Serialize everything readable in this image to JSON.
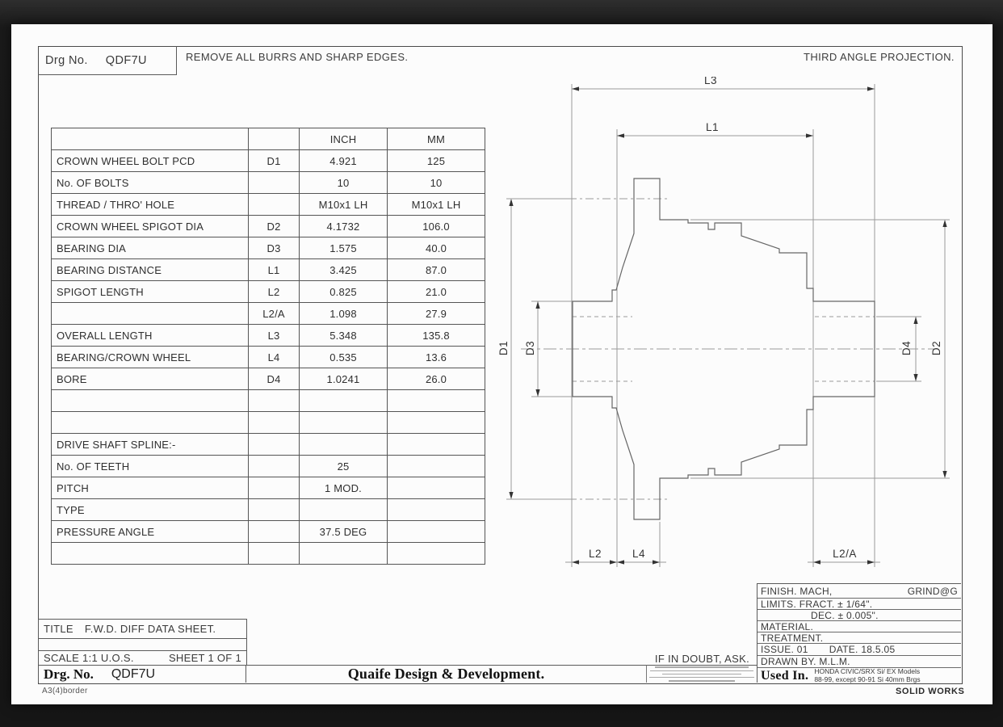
{
  "sheet": {
    "drg_no_label": "Drg No.",
    "drg_no_value": "QDF7U",
    "top_note": "REMOVE ALL BURRS AND SHARP EDGES.",
    "projection_note": "THIRD ANGLE PROJECTION.",
    "border_note": "A3(4)border",
    "cad_note": "SOLID WORKS"
  },
  "data_table": {
    "rows": [
      [
        "",
        "",
        "INCH",
        "MM"
      ],
      [
        "CROWN WHEEL BOLT PCD",
        "D1",
        "4.921",
        "125"
      ],
      [
        "No. OF BOLTS",
        "",
        "10",
        "10"
      ],
      [
        "THREAD / THRO' HOLE",
        "",
        "M10x1 LH",
        "M10x1 LH"
      ],
      [
        "CROWN WHEEL SPIGOT DIA",
        "D2",
        "4.1732",
        "106.0"
      ],
      [
        "BEARING DIA",
        "D3",
        "1.575",
        "40.0"
      ],
      [
        "BEARING DISTANCE",
        "L1",
        "3.425",
        "87.0"
      ],
      [
        "SPIGOT LENGTH",
        "L2",
        "0.825",
        "21.0"
      ],
      [
        "",
        "L2/A",
        "1.098",
        "27.9"
      ],
      [
        "OVERALL LENGTH",
        "L3",
        "5.348",
        "135.8"
      ],
      [
        "BEARING/CROWN WHEEL",
        "L4",
        "0.535",
        "13.6"
      ],
      [
        "BORE",
        "D4",
        "1.0241",
        "26.0"
      ],
      [
        "",
        "",
        "",
        ""
      ],
      [
        "",
        "",
        "",
        ""
      ],
      [
        "DRIVE SHAFT SPLINE:-",
        "",
        "",
        ""
      ],
      [
        "No. OF TEETH",
        "",
        "25",
        ""
      ],
      [
        "PITCH",
        "",
        "1 MOD.",
        ""
      ],
      [
        "TYPE",
        "",
        "",
        ""
      ],
      [
        "PRESSURE ANGLE",
        "",
        "37.5 DEG",
        ""
      ],
      [
        "",
        "",
        "",
        ""
      ]
    ]
  },
  "drawing": {
    "labels": {
      "l3": "L3",
      "l1": "L1",
      "l2": "L2",
      "l4": "L4",
      "l2a": "L2/A",
      "d1": "D1",
      "d2": "D2",
      "d3": "D3",
      "d4": "D4"
    }
  },
  "title_block": {
    "title_label": "TITLE",
    "title_value": "F.W.D. DIFF DATA SHEET.",
    "scale": "SCALE 1:1 U.O.S.",
    "sheet_no": "SHEET 1 OF 1",
    "drg_label": "Drg. No.",
    "drg_value": "QDF7U",
    "company": "Quaife Design & Development.",
    "doubt_note": "IF IN DOUBT, ASK."
  },
  "spec_block": {
    "finish_label": "FINISH. MACH,",
    "finish_right": "GRIND@G",
    "limits": "LIMITS. FRACT. ± 1/64\".",
    "dec": "DEC. ± 0.005\".",
    "material": "MATERIAL.",
    "treatment": "TREATMENT.",
    "issue": "ISSUE. 01",
    "date": "DATE. 18.5.05",
    "drawn_by": "DRAWN BY. M.L.M.",
    "used_in_label": "Used In.",
    "used_in_line1": "HONDA CIVIC/SRX  Si/ EX Models",
    "used_in_line2": "88-99, except 90-91 Si 40mm Brgs"
  }
}
